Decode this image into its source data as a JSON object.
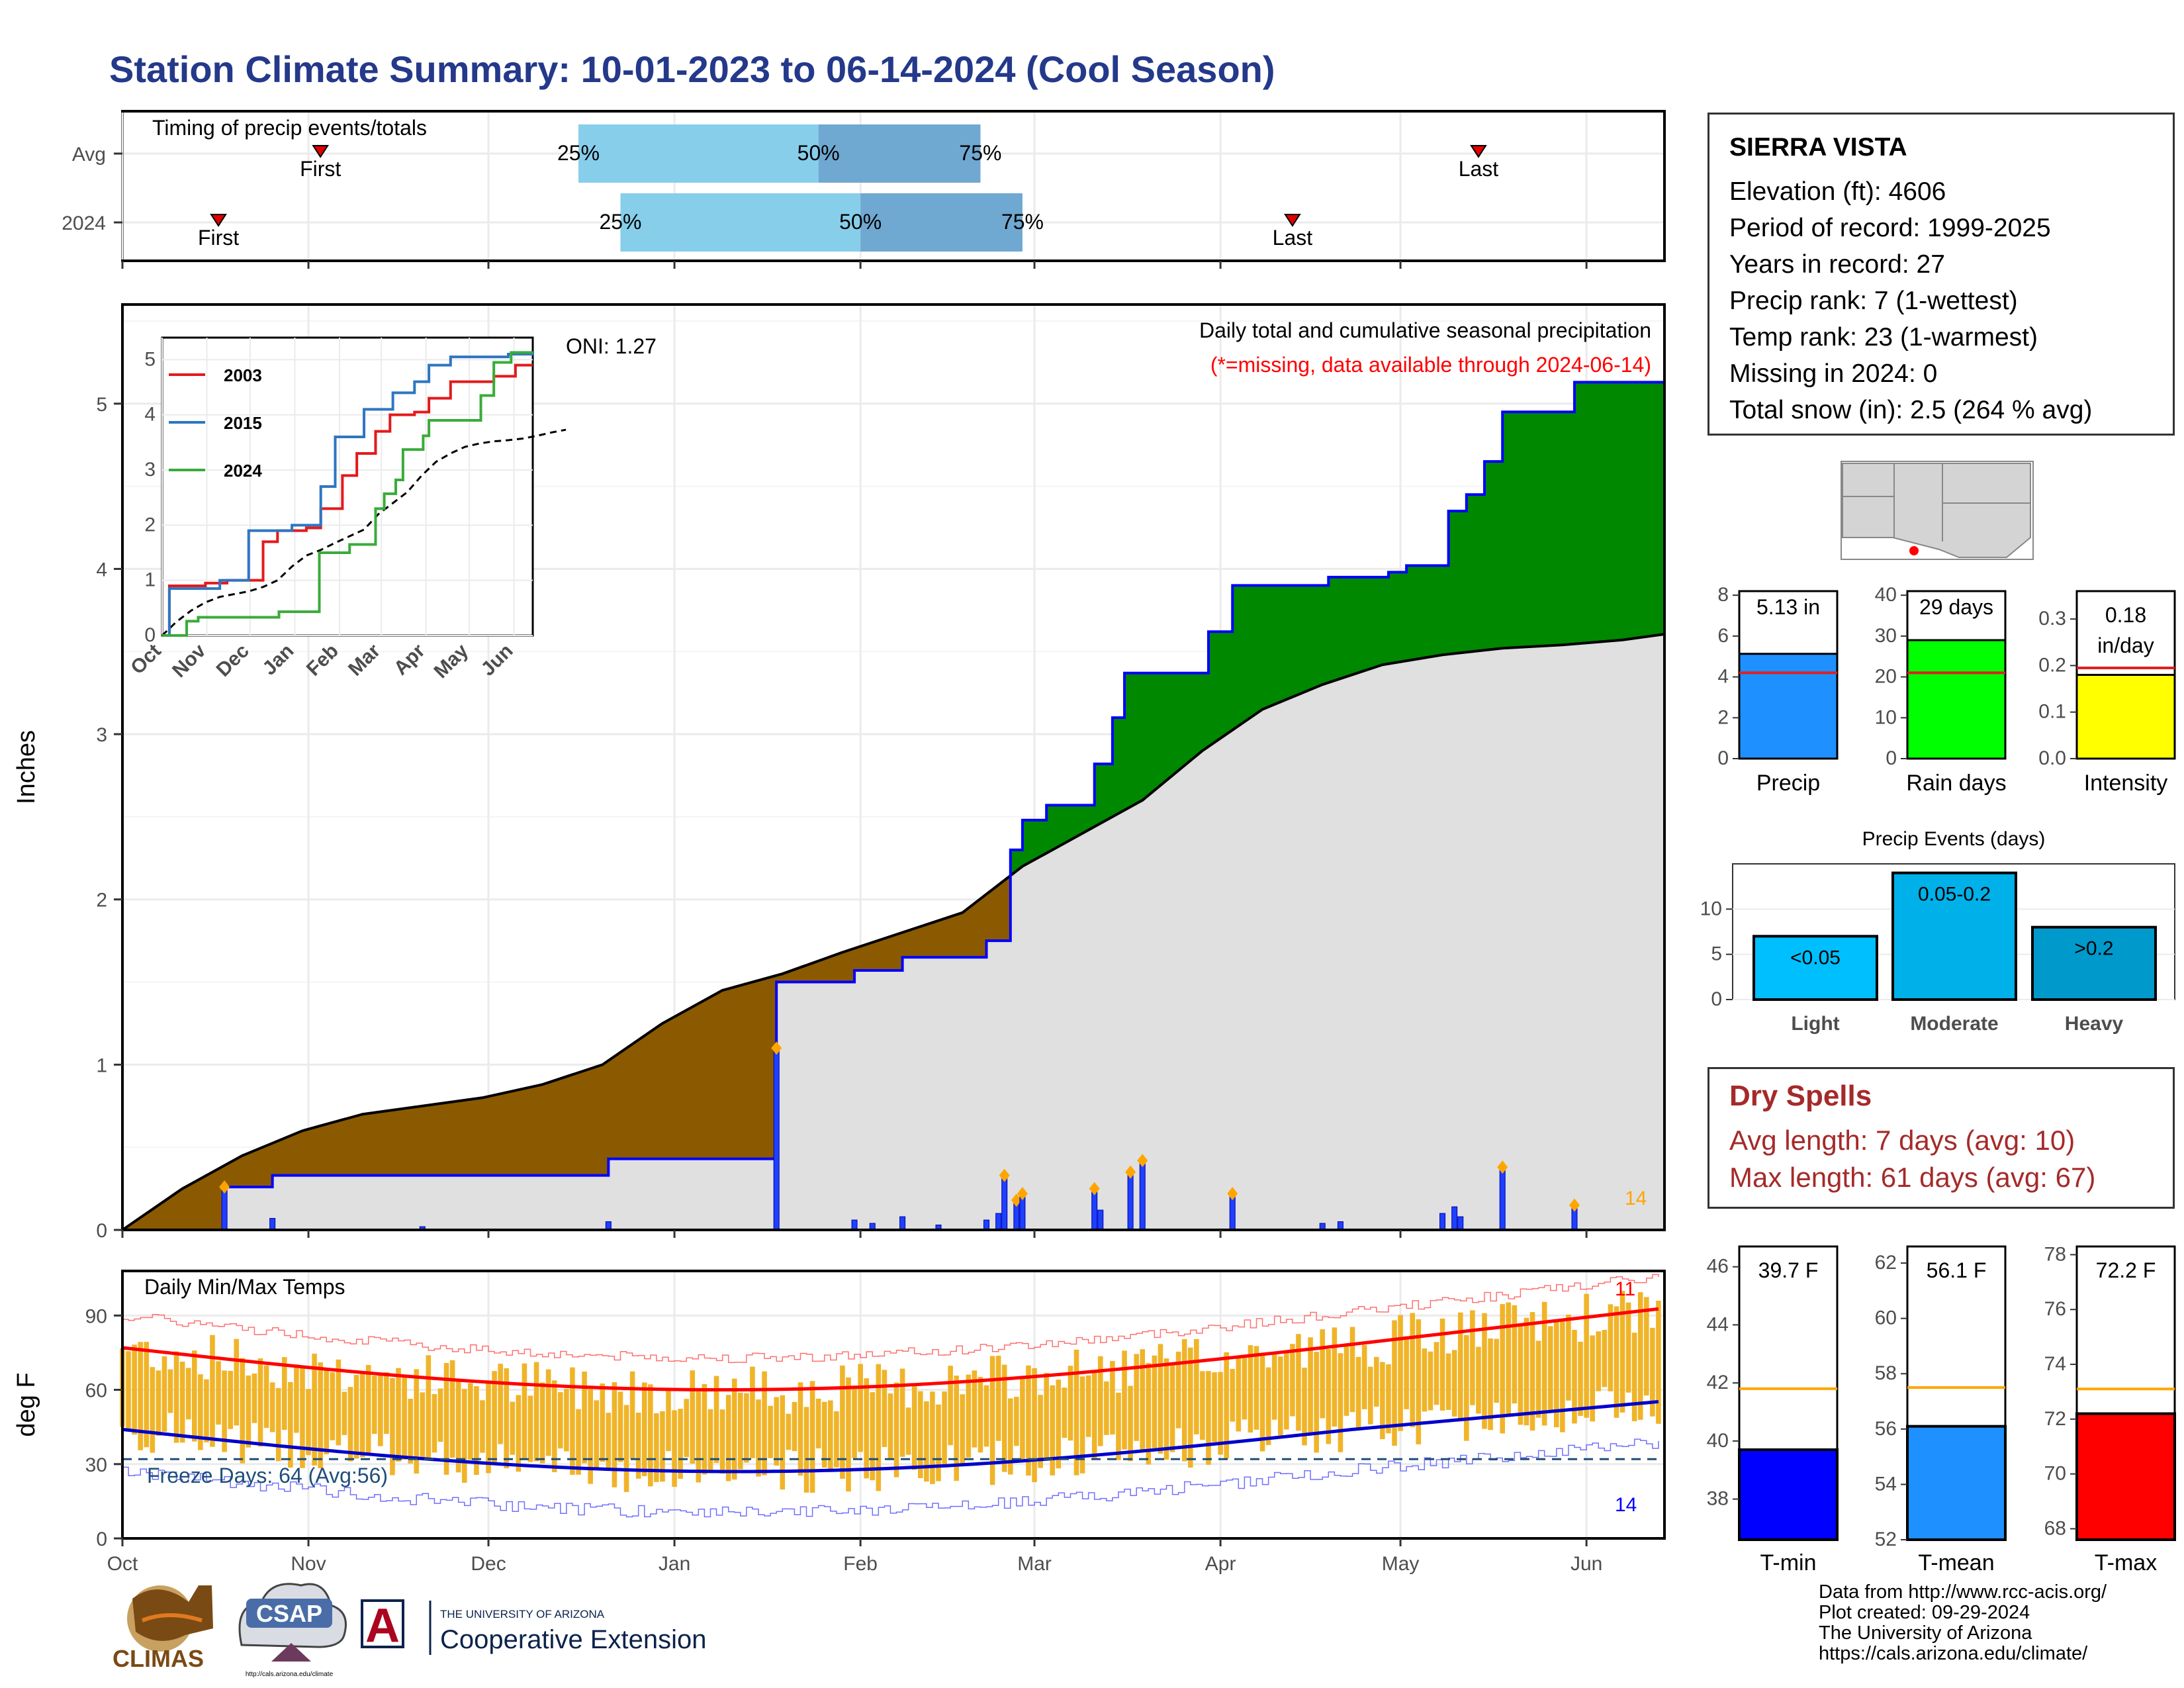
{
  "title": "Station Climate Summary: 10-01-2023 to 06-14-2024 (Cool Season)",
  "station": {
    "name": "SIERRA VISTA",
    "lines": [
      "Elevation (ft): 4606",
      "Period of record: 1999-2025",
      "Years in record: 27",
      "Precip rank: 7 (1-wettest)",
      "Temp rank: 23 (1-warmest)",
      "Missing in 2024: 0",
      "Total snow (in): 2.5 (264 % avg)"
    ]
  },
  "dry_spells": {
    "title": "Dry Spells",
    "avg": "Avg length: 7 days (avg: 10)",
    "max": "Max length: 61 days (avg: 67)"
  },
  "footer": [
    "Data from http://www.rcc-acis.org/",
    "Plot created: 09-29-2024",
    "The University of Arizona",
    "https://cals.arizona.edu/climate/"
  ],
  "logos": {
    "climas": "CLIMAS",
    "csap": "CSAP",
    "csap_url": "http://cals.arizona.edu/climate",
    "ua_small": "THE UNIVERSITY OF ARIZONA",
    "ua_big": "Cooperative Extension",
    "ua_letter": "A"
  },
  "months": [
    "Oct",
    "Nov",
    "Dec",
    "Jan",
    "Feb",
    "Mar",
    "Apr",
    "May",
    "Jun"
  ],
  "colors": {
    "brand": "#24398a",
    "cum_avg_fill": "#e0e0e0",
    "deficit": "#8b5a00",
    "surplus": "#008800",
    "cum_line": "#0000ff",
    "bars_temp": "#f0b429",
    "tmax_line": "#ff0000",
    "tmin_line": "#0000cc",
    "dry_spell_text": "#a52a2a"
  },
  "chart_data": [
    {
      "id": "timing",
      "type": "bar",
      "title": "Timing of precip events/totals",
      "rows": [
        {
          "label": "Avg",
          "first": "Nov 3",
          "p25": "Dec 16",
          "p50": "Jan 25",
          "p75": "Feb 21",
          "last": "May 14"
        },
        {
          "label": "2024",
          "first": "Oct 17",
          "p25": "Dec 23",
          "p50": "Feb 1",
          "p75": "Feb 28",
          "last": "Apr 13"
        }
      ],
      "labels": {
        "first": "First",
        "last": "Last",
        "p25": "25%",
        "p50": "50%",
        "p75": "75%"
      }
    },
    {
      "id": "precip",
      "type": "area",
      "title": "Daily total and cumulative seasonal precipitation",
      "subtitle": "(*=missing, data available through 2024-06-14)",
      "ylabel": "Inches",
      "oni": "ONI: 1.27",
      "count": "14",
      "ylim": [
        0,
        5.6
      ],
      "yticks": [
        0,
        1,
        2,
        3,
        4,
        5
      ],
      "avg_cumulative": [
        [
          0,
          0
        ],
        [
          10,
          0.25
        ],
        [
          20,
          0.45
        ],
        [
          30,
          0.6
        ],
        [
          40,
          0.7
        ],
        [
          50,
          0.75
        ],
        [
          60,
          0.8
        ],
        [
          70,
          0.88
        ],
        [
          80,
          1.0
        ],
        [
          90,
          1.25
        ],
        [
          100,
          1.45
        ],
        [
          110,
          1.55
        ],
        [
          120,
          1.68
        ],
        [
          130,
          1.8
        ],
        [
          140,
          1.92
        ],
        [
          150,
          2.2
        ],
        [
          160,
          2.4
        ],
        [
          170,
          2.6
        ],
        [
          180,
          2.9
        ],
        [
          190,
          3.15
        ],
        [
          200,
          3.3
        ],
        [
          210,
          3.42
        ],
        [
          220,
          3.48
        ],
        [
          230,
          3.52
        ],
        [
          240,
          3.54
        ],
        [
          250,
          3.57
        ],
        [
          260,
          3.62
        ],
        [
          270,
          3.68
        ],
        [
          280,
          3.73
        ]
      ],
      "cumulative_2024": [
        [
          0,
          0
        ],
        [
          16,
          0
        ],
        [
          17,
          0.26
        ],
        [
          24,
          0.26
        ],
        [
          25,
          0.33
        ],
        [
          80,
          0.33
        ],
        [
          81,
          0.43
        ],
        [
          108,
          0.43
        ],
        [
          109,
          1.5
        ],
        [
          121,
          1.5
        ],
        [
          122,
          1.57
        ],
        [
          129,
          1.57
        ],
        [
          130,
          1.65
        ],
        [
          143,
          1.65
        ],
        [
          144,
          1.75
        ],
        [
          147,
          1.75
        ],
        [
          148,
          2.3
        ],
        [
          149,
          2.3
        ],
        [
          150,
          2.48
        ],
        [
          153,
          2.48
        ],
        [
          154,
          2.57
        ],
        [
          161,
          2.57
        ],
        [
          162,
          2.82
        ],
        [
          164,
          2.82
        ],
        [
          165,
          3.1
        ],
        [
          166,
          3.1
        ],
        [
          167,
          3.37
        ],
        [
          180,
          3.37
        ],
        [
          181,
          3.62
        ],
        [
          184,
          3.62
        ],
        [
          185,
          3.9
        ],
        [
          200,
          3.9
        ],
        [
          201,
          3.95
        ],
        [
          210,
          3.95
        ],
        [
          211,
          3.98
        ],
        [
          213,
          3.98
        ],
        [
          214,
          4.02
        ],
        [
          220,
          4.02
        ],
        [
          221,
          4.35
        ],
        [
          223,
          4.35
        ],
        [
          224,
          4.45
        ],
        [
          226,
          4.45
        ],
        [
          227,
          4.65
        ],
        [
          229,
          4.65
        ],
        [
          230,
          4.95
        ],
        [
          241,
          4.95
        ],
        [
          242,
          5.13
        ],
        [
          257,
          5.13
        ]
      ],
      "daily_bars": [
        [
          17,
          0.26
        ],
        [
          25,
          0.07
        ],
        [
          50,
          0.02
        ],
        [
          81,
          0.05
        ],
        [
          109,
          1.1
        ],
        [
          122,
          0.06
        ],
        [
          125,
          0.04
        ],
        [
          130,
          0.08
        ],
        [
          136,
          0.03
        ],
        [
          144,
          0.06
        ],
        [
          146,
          0.1
        ],
        [
          147,
          0.33
        ],
        [
          149,
          0.18
        ],
        [
          150,
          0.22
        ],
        [
          162,
          0.25
        ],
        [
          163,
          0.12
        ],
        [
          168,
          0.35
        ],
        [
          170,
          0.42
        ],
        [
          185,
          0.22
        ],
        [
          200,
          0.04
        ],
        [
          203,
          0.05
        ],
        [
          220,
          0.1
        ],
        [
          222,
          0.14
        ],
        [
          223,
          0.08
        ],
        [
          230,
          0.38
        ],
        [
          242,
          0.15
        ]
      ]
    },
    {
      "id": "inset",
      "type": "line",
      "series": [
        {
          "name": "2003",
          "color": "#e31a1c"
        },
        {
          "name": "2015",
          "color": "#2e76c2"
        },
        {
          "name": "2024",
          "color": "#3aab3a"
        }
      ],
      "yticks": [
        0,
        1,
        2,
        3,
        4,
        5
      ],
      "xticks": [
        "Oct",
        "Nov",
        "Dec",
        "Jan",
        "Feb",
        "Mar",
        "Apr",
        "May",
        "Jun"
      ]
    },
    {
      "id": "temps",
      "type": "bar",
      "title": "Daily Min/Max Temps",
      "ylabel": "deg F",
      "freeze": "Freeze Days: 64 (Avg:56)",
      "freeze_level": 32,
      "count_low": "14",
      "count_high": "11",
      "ylim": [
        0,
        108
      ],
      "yticks": [
        0,
        30,
        60,
        90
      ]
    },
    {
      "id": "seasonal_precip",
      "type": "bar",
      "panels": [
        {
          "label": "Precip",
          "value": 5.13,
          "value_text": "5.13 in",
          "avg": 4.2,
          "ymax": 8.2,
          "yticks": [
            0,
            2,
            4,
            6,
            8
          ],
          "color": "#1e90ff"
        },
        {
          "label": "Rain days",
          "value": 29,
          "value_text": "29 days",
          "avg": 21,
          "ymax": 41,
          "yticks": [
            0,
            10,
            20,
            30,
            40
          ],
          "color": "#00ff00"
        },
        {
          "label": "Intensity",
          "value": 0.18,
          "value_text": "0.18 in/day",
          "value_lines": [
            "0.18",
            "in/day"
          ],
          "avg": 0.195,
          "ymax": 0.36,
          "yticks": [
            0.0,
            0.1,
            0.2,
            0.3
          ],
          "yticklabels": [
            "0.0",
            "0.1",
            "0.2",
            "0.3"
          ],
          "color": "#ffff00"
        }
      ]
    },
    {
      "id": "precip_events",
      "type": "bar",
      "title": "Precip Events (days)",
      "categories": [
        "Light",
        "Moderate",
        "Heavy"
      ],
      "bar_labels": [
        "<0.05",
        "0.05-0.2",
        ">0.2"
      ],
      "values": [
        7,
        14,
        8
      ],
      "colors": [
        "#00bfff",
        "#00b0e8",
        "#0099cc"
      ],
      "ylim": [
        0,
        15
      ],
      "yticks": [
        0,
        5,
        10
      ]
    },
    {
      "id": "seasonal_temps",
      "type": "bar",
      "panels": [
        {
          "label": "T-min",
          "value": 39.7,
          "value_text": "39.7 F",
          "avg": 41.8,
          "ymin": 36.6,
          "ymax": 46.7,
          "yticks": [
            38,
            40,
            42,
            44,
            46
          ],
          "color": "#0000ff"
        },
        {
          "label": "T-mean",
          "value": 56.1,
          "value_text": "56.1 F",
          "avg": 57.5,
          "ymin": 52,
          "ymax": 62.6,
          "yticks": [
            52,
            54,
            56,
            58,
            60,
            62
          ],
          "color": "#1e90ff"
        },
        {
          "label": "T-max",
          "value": 72.2,
          "value_text": "72.2 F",
          "avg": 73.1,
          "ymin": 67.6,
          "ymax": 78.3,
          "yticks": [
            68,
            70,
            72,
            74,
            76,
            78
          ],
          "color": "#ff0000"
        }
      ]
    }
  ]
}
